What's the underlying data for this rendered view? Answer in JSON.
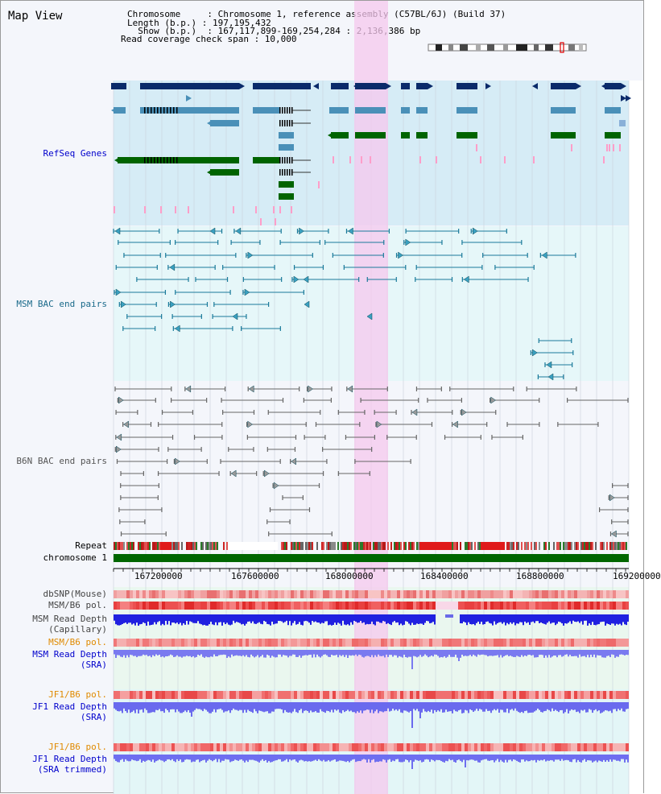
{
  "header": {
    "title": "Map View",
    "info_lines": [
      "Chromosome     : Chromosome 1, reference assembly (C57BL/6J) (Build 37)",
      "Length (b.p.) : 197,195,432",
      "  Show (b.p.)  : 167,117,899-169,254,284 : 2,136,386 bp",
      "Read coverage check span : 10,000"
    ]
  },
  "tracks": {
    "refseq": {
      "label": "RefSeq Genes",
      "color": "#0000cc"
    },
    "msm_bac": {
      "label": "MSM BAC end pairs",
      "color": "#1a6a8a"
    },
    "b6n_bac": {
      "label": "B6N BAC end pairs",
      "color": "#555555"
    },
    "repeat": {
      "label": "Repeat"
    },
    "chromosome": {
      "label": "chromosome 1"
    },
    "dbsnp": {
      "label": "dbSNP(Mouse)"
    },
    "msm_b6_pol": {
      "label": "MSM/B6 pol."
    },
    "msm_read_cap": {
      "label_line1": "MSM Read Depth",
      "label_line2": "(Capillary)"
    },
    "msm_b6_pol2": {
      "label": "MSM/B6 pol.",
      "color": "#e08a00"
    },
    "msm_read_sra": {
      "label_line1": "MSM Read Depth",
      "label_line2": "(SRA)",
      "color": "#0000cc"
    },
    "jf1_b6_pol": {
      "label": "JF1/B6 pol.",
      "color": "#e08a00"
    },
    "jf1_read_sra": {
      "label_line1": "JF1 Read Depth",
      "label_line2": "(SRA)",
      "color": "#0000cc"
    },
    "jf1_b6_pol2": {
      "label": "JF1/B6 pol.",
      "color": "#e08a00"
    },
    "jf1_read_trim": {
      "label_line1": "JF1 Read Depth",
      "label_line2": "(SRA trimmed)",
      "color": "#0000cc"
    }
  },
  "axis": {
    "tick_labels": [
      "167200000",
      "167600000",
      "168000000",
      "168400000",
      "168800000",
      "169200000"
    ]
  },
  "colors": {
    "highlight": "#f5c8ee",
    "gene_dark": "#0a2a6a",
    "gene_mid": "#4a90b8",
    "gene_green": "#006400",
    "chromosome_bar": "#006600",
    "refseq_bg": "#d6ecf6",
    "msm_bg": "#e6f7f9"
  }
}
